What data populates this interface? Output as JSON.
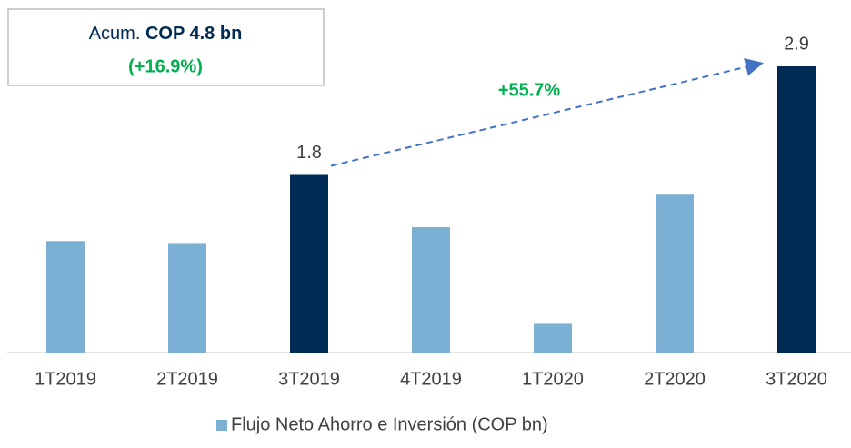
{
  "chart_data": {
    "type": "bar",
    "categories": [
      "1T2019",
      "2T2019",
      "3T2019",
      "4T2019",
      "1T2020",
      "2T2020",
      "3T2020"
    ],
    "series": [
      {
        "name": "Flujo Neto Ahorro e Inversión (COP bn)",
        "color": "#7bafd4",
        "colors": [
          "#7bafd4",
          "#7bafd4",
          "#002b54",
          "#7bafd4",
          "#7bafd4",
          "#7bafd4",
          "#002b54"
        ],
        "values": [
          1.13,
          1.11,
          1.8,
          1.27,
          0.3,
          1.6,
          2.9
        ],
        "value_labels": [
          null,
          null,
          "1.8",
          null,
          null,
          null,
          "2.9"
        ]
      }
    ],
    "annotations": {
      "box_prefix": "Acum.",
      "box_value": "COP 4.8 bn",
      "box_growth": "(+16.9%)",
      "arrow_label": "+55.7%"
    },
    "legend": "bottom"
  }
}
